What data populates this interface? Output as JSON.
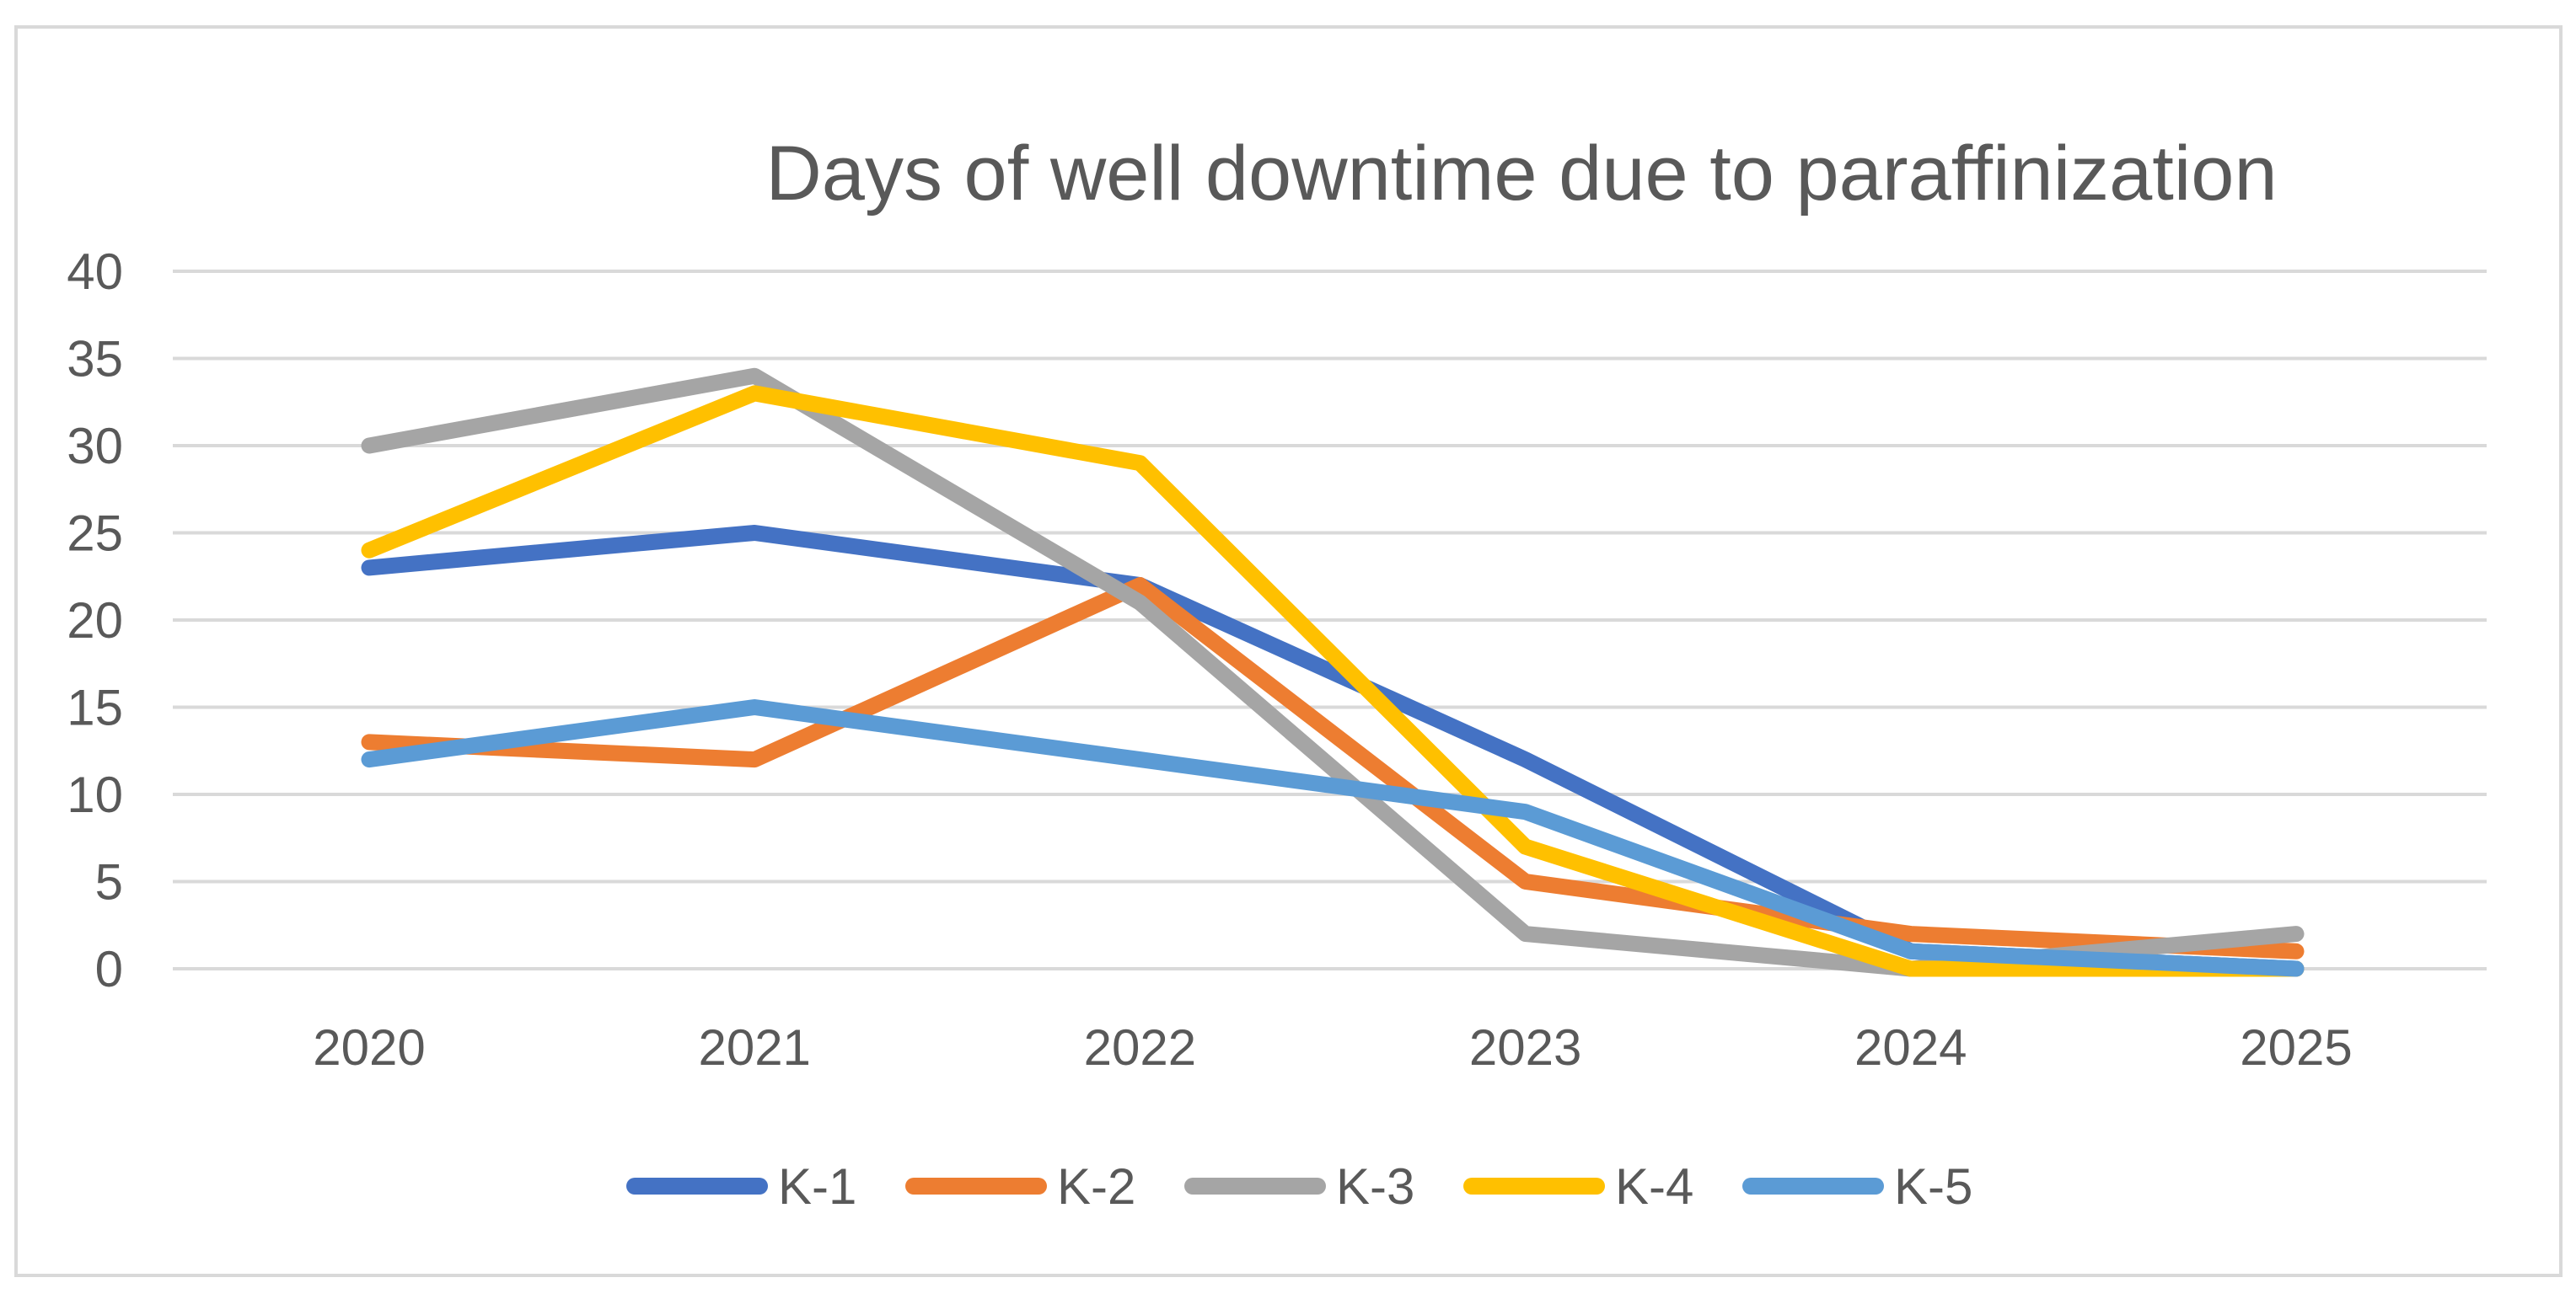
{
  "chart": {
    "title": "Days of well downtime due to paraffinization"
  },
  "chart_data": {
    "type": "line",
    "title": "Days of well downtime due to paraffinization",
    "categories": [
      "2020",
      "2021",
      "2022",
      "2023",
      "2024",
      "2025"
    ],
    "series": [
      {
        "name": "K-1",
        "color": "#4472C4",
        "values": [
          23,
          25,
          22,
          12,
          1,
          0
        ]
      },
      {
        "name": "K-2",
        "color": "#ED7D31",
        "values": [
          13,
          12,
          22,
          5,
          2,
          1
        ]
      },
      {
        "name": "K-3",
        "color": "#A5A5A5",
        "values": [
          30,
          34,
          21,
          2,
          0,
          2
        ]
      },
      {
        "name": "K-4",
        "color": "#FFC000",
        "values": [
          24,
          33,
          29,
          7,
          0,
          0
        ]
      },
      {
        "name": "K-5",
        "color": "#5B9BD5",
        "values": [
          12,
          15,
          12,
          9,
          1,
          0
        ]
      }
    ],
    "xlabel": "",
    "ylabel": "",
    "ylim": [
      0,
      40
    ],
    "yticks": [
      0,
      5,
      10,
      15,
      20,
      25,
      30,
      35,
      40
    ],
    "grid": "horizontal",
    "legend_position": "bottom",
    "text_color": "#595959",
    "gridline_color": "#D9D9D9",
    "border_color": "#D9D9D9"
  }
}
